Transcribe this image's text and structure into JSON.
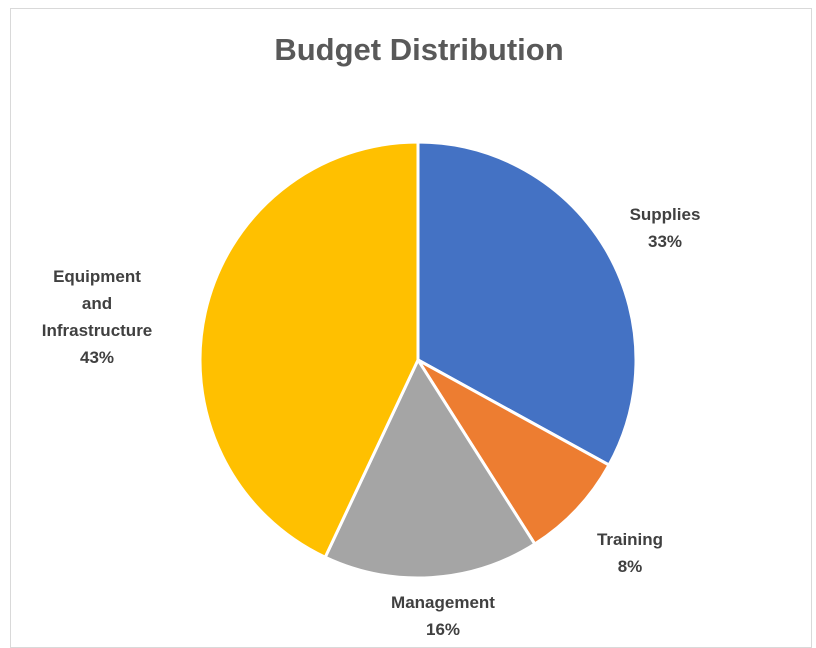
{
  "chart_data": {
    "type": "pie",
    "title": "Budget Distribution",
    "slices": [
      {
        "name": "Supplies",
        "label_lines": [
          "Supplies"
        ],
        "percent_label": "33%",
        "value": 33,
        "color": "#4472C4"
      },
      {
        "name": "Training",
        "label_lines": [
          "Training"
        ],
        "percent_label": "8%",
        "value": 8,
        "color": "#ED7D31"
      },
      {
        "name": "Management",
        "label_lines": [
          "Management"
        ],
        "percent_label": "16%",
        "value": 16,
        "color": "#A5A5A5"
      },
      {
        "name": "Equipment and Infrastructure",
        "label_lines": [
          "Equipment",
          "and",
          "Infrastructure"
        ],
        "percent_label": "43%",
        "value": 43,
        "color": "#FFC000"
      }
    ],
    "legend": "none",
    "start_angle": "12 o'clock, clockwise"
  }
}
